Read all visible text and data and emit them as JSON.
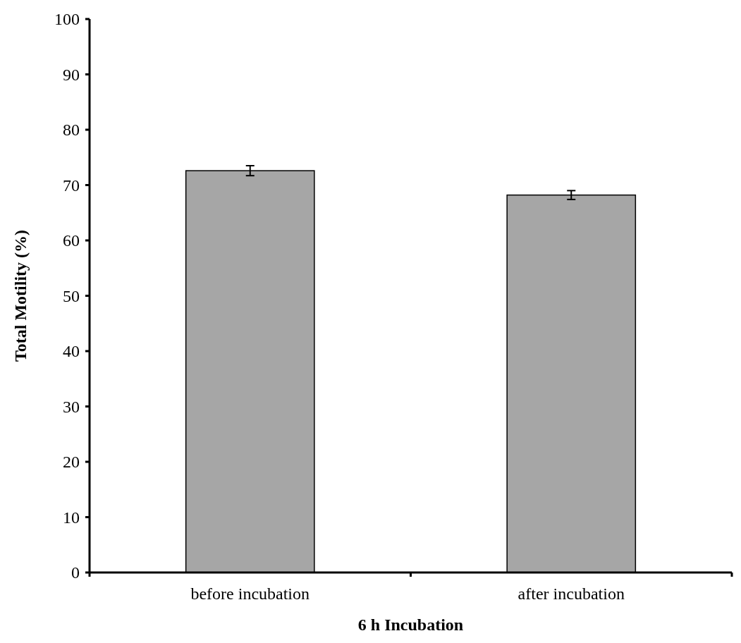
{
  "chart_data": {
    "type": "bar",
    "xlabel": "6 h Incubation",
    "ylabel": "Total Motility (%)",
    "categories": [
      "before incubation",
      "after incubation"
    ],
    "values": [
      72.6,
      68.2
    ],
    "errors": [
      0.9,
      0.8
    ],
    "color": "#a6a6a6",
    "ylim": [
      0,
      100
    ],
    "yticks": [
      0,
      10,
      20,
      30,
      40,
      50,
      60,
      70,
      80,
      90,
      100
    ],
    "grid": false
  }
}
